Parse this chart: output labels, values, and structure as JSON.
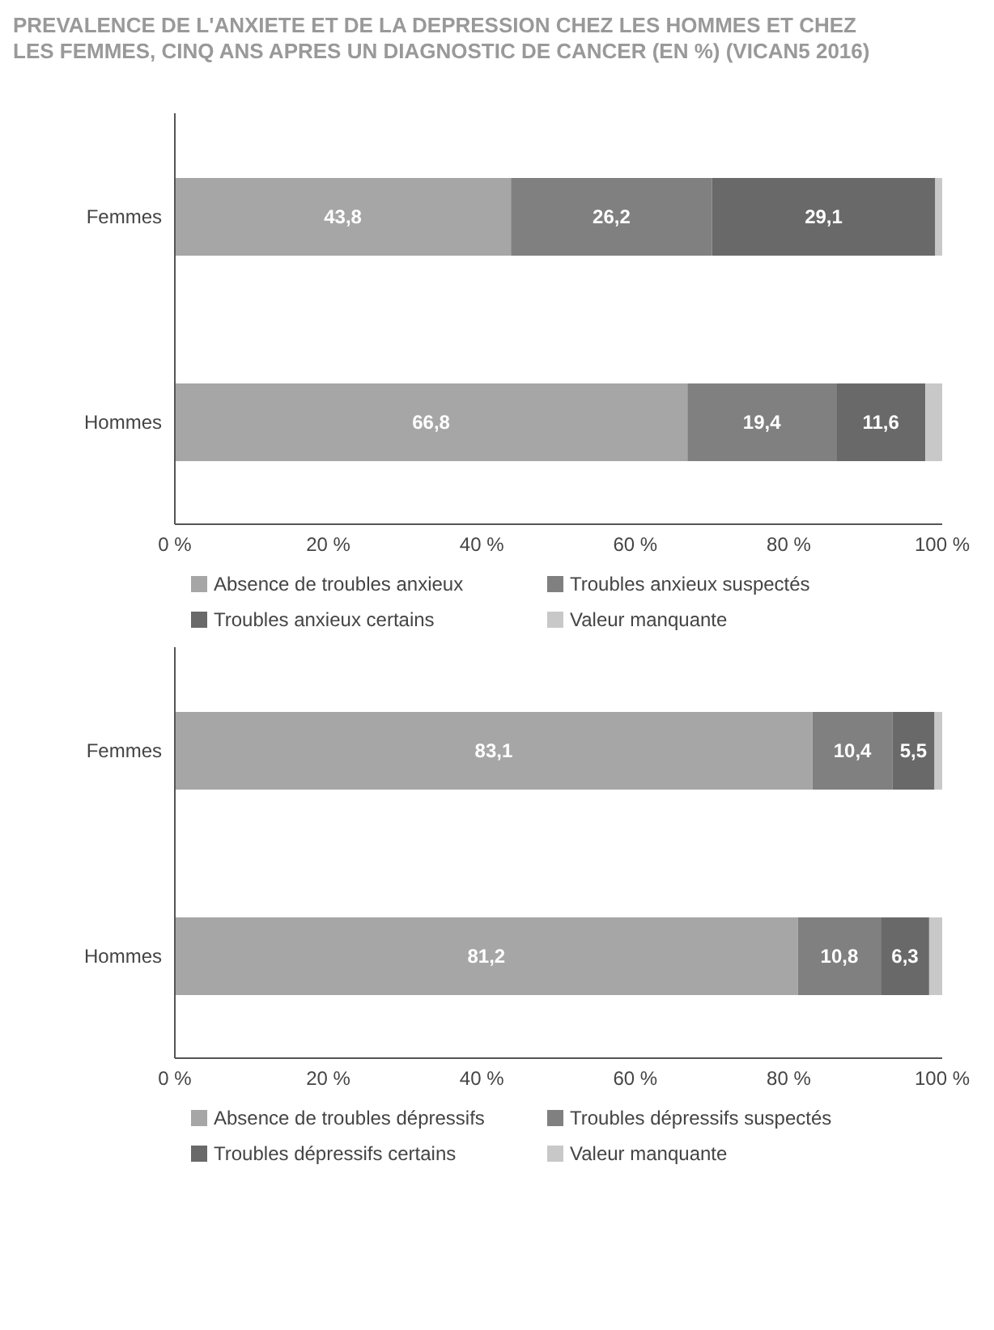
{
  "chart_data": [
    {
      "type": "bar",
      "orientation": "horizontal",
      "stacked": true,
      "title": "PREVALENCE DE L'ANXIETE ET DE LA DEPRESSION CHEZ LES HOMMES ET CHEZ LES FEMMES, CINQ ANS APRES UN DIAGNOSTIC DE CANCER (EN %) (VICAN5 2016)",
      "categories": [
        "Femmes",
        "Hommes"
      ],
      "series": [
        {
          "name": "Absence de troubles anxieux",
          "color": "#a6a6a6",
          "values": [
            43.8,
            66.8
          ],
          "value_labels": [
            "43,8",
            "66,8"
          ]
        },
        {
          "name": "Troubles anxieux suspectés",
          "color": "#808080",
          "values": [
            26.2,
            19.4
          ],
          "value_labels": [
            "26,2",
            "19,4"
          ]
        },
        {
          "name": "Troubles anxieux certains",
          "color": "#696969",
          "values": [
            29.1,
            11.6
          ],
          "value_labels": [
            "29,1",
            "11,6"
          ]
        },
        {
          "name": "Valeur manquante",
          "color": "#c8c8c8",
          "values": [
            0.9,
            2.2
          ],
          "value_labels": [
            null,
            null
          ]
        }
      ],
      "xlim": [
        0,
        100
      ],
      "xticks": [
        {
          "value": 0,
          "label": "0 %"
        },
        {
          "value": 20,
          "label": "20 %"
        },
        {
          "value": 40,
          "label": "40 %"
        },
        {
          "value": 60,
          "label": "60 %"
        },
        {
          "value": 80,
          "label": "80 %"
        },
        {
          "value": 100,
          "label": "100 %"
        }
      ],
      "legend": "bottom",
      "grid": false
    },
    {
      "type": "bar",
      "orientation": "horizontal",
      "stacked": true,
      "categories": [
        "Femmes",
        "Hommes"
      ],
      "series": [
        {
          "name": "Absence de troubles dépressifs",
          "color": "#a6a6a6",
          "values": [
            83.1,
            81.2
          ],
          "value_labels": [
            "83,1",
            "81,2"
          ]
        },
        {
          "name": "Troubles dépressifs suspectés",
          "color": "#808080",
          "values": [
            10.4,
            10.8
          ],
          "value_labels": [
            "10,4",
            "10,8"
          ]
        },
        {
          "name": "Troubles dépressifs certains",
          "color": "#696969",
          "values": [
            5.5,
            6.3
          ],
          "value_labels": [
            "5,5",
            "6,3"
          ]
        },
        {
          "name": "Valeur manquante",
          "color": "#c8c8c8",
          "values": [
            1.0,
            1.7
          ],
          "value_labels": [
            null,
            null
          ]
        }
      ],
      "xlim": [
        0,
        100
      ],
      "xticks": [
        {
          "value": 0,
          "label": "0 %"
        },
        {
          "value": 20,
          "label": "20 %"
        },
        {
          "value": 40,
          "label": "40 %"
        },
        {
          "value": 60,
          "label": "60 %"
        },
        {
          "value": 80,
          "label": "80 %"
        },
        {
          "value": 100,
          "label": "100 %"
        }
      ],
      "legend": "bottom",
      "grid": false
    }
  ]
}
